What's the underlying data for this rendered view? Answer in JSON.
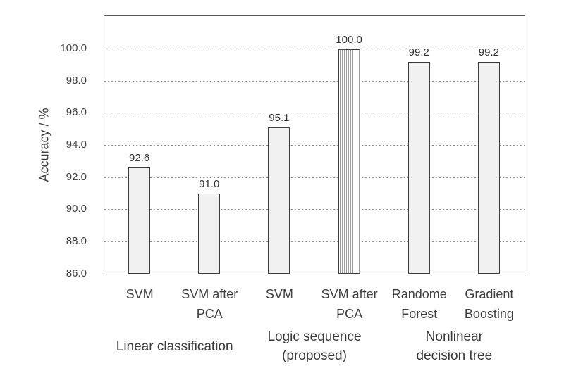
{
  "chart_data": {
    "type": "bar",
    "title": "",
    "ylabel": "Accuracy / %",
    "xlabel": "",
    "ylim": [
      86,
      102
    ],
    "yticks": [
      86,
      88,
      90,
      92,
      94,
      96,
      98,
      100
    ],
    "ytick_labels": [
      "86.0",
      "88.0",
      "90.0",
      "92.0",
      "94.0",
      "96.0",
      "98.0",
      "100.0"
    ],
    "grid": "horizontal-dashed",
    "legend": "none",
    "categories": [
      "SVM",
      "SVM after\nPCA",
      "SVM",
      "SVM after\nPCA",
      "Randome\nForest",
      "Gradient\nBoosting"
    ],
    "values": [
      92.6,
      91.0,
      95.1,
      100.0,
      99.2,
      99.2
    ],
    "value_labels": [
      "92.6",
      "91.0",
      "95.1",
      "100.0",
      "99.2",
      "99.2"
    ],
    "bar_fill_styles": [
      "solid",
      "solid",
      "solid",
      "vertical-hatch",
      "solid",
      "solid"
    ],
    "groups": [
      {
        "label": "Linear classification",
        "bars": [
          0,
          1
        ]
      },
      {
        "label": "Logic sequence\n(proposed)",
        "bars": [
          2,
          3
        ]
      },
      {
        "label": "Nonlinear\ndecision tree",
        "bars": [
          4,
          5
        ]
      }
    ],
    "colors": {
      "background": "#ffffff",
      "bar_fill": "#f1f1f1",
      "bar_border": "#3d3d3d",
      "hatch_line": "#9e9e9e",
      "grid_line": "#8c8c8c",
      "frame": "#595959",
      "text": "#404040"
    }
  }
}
